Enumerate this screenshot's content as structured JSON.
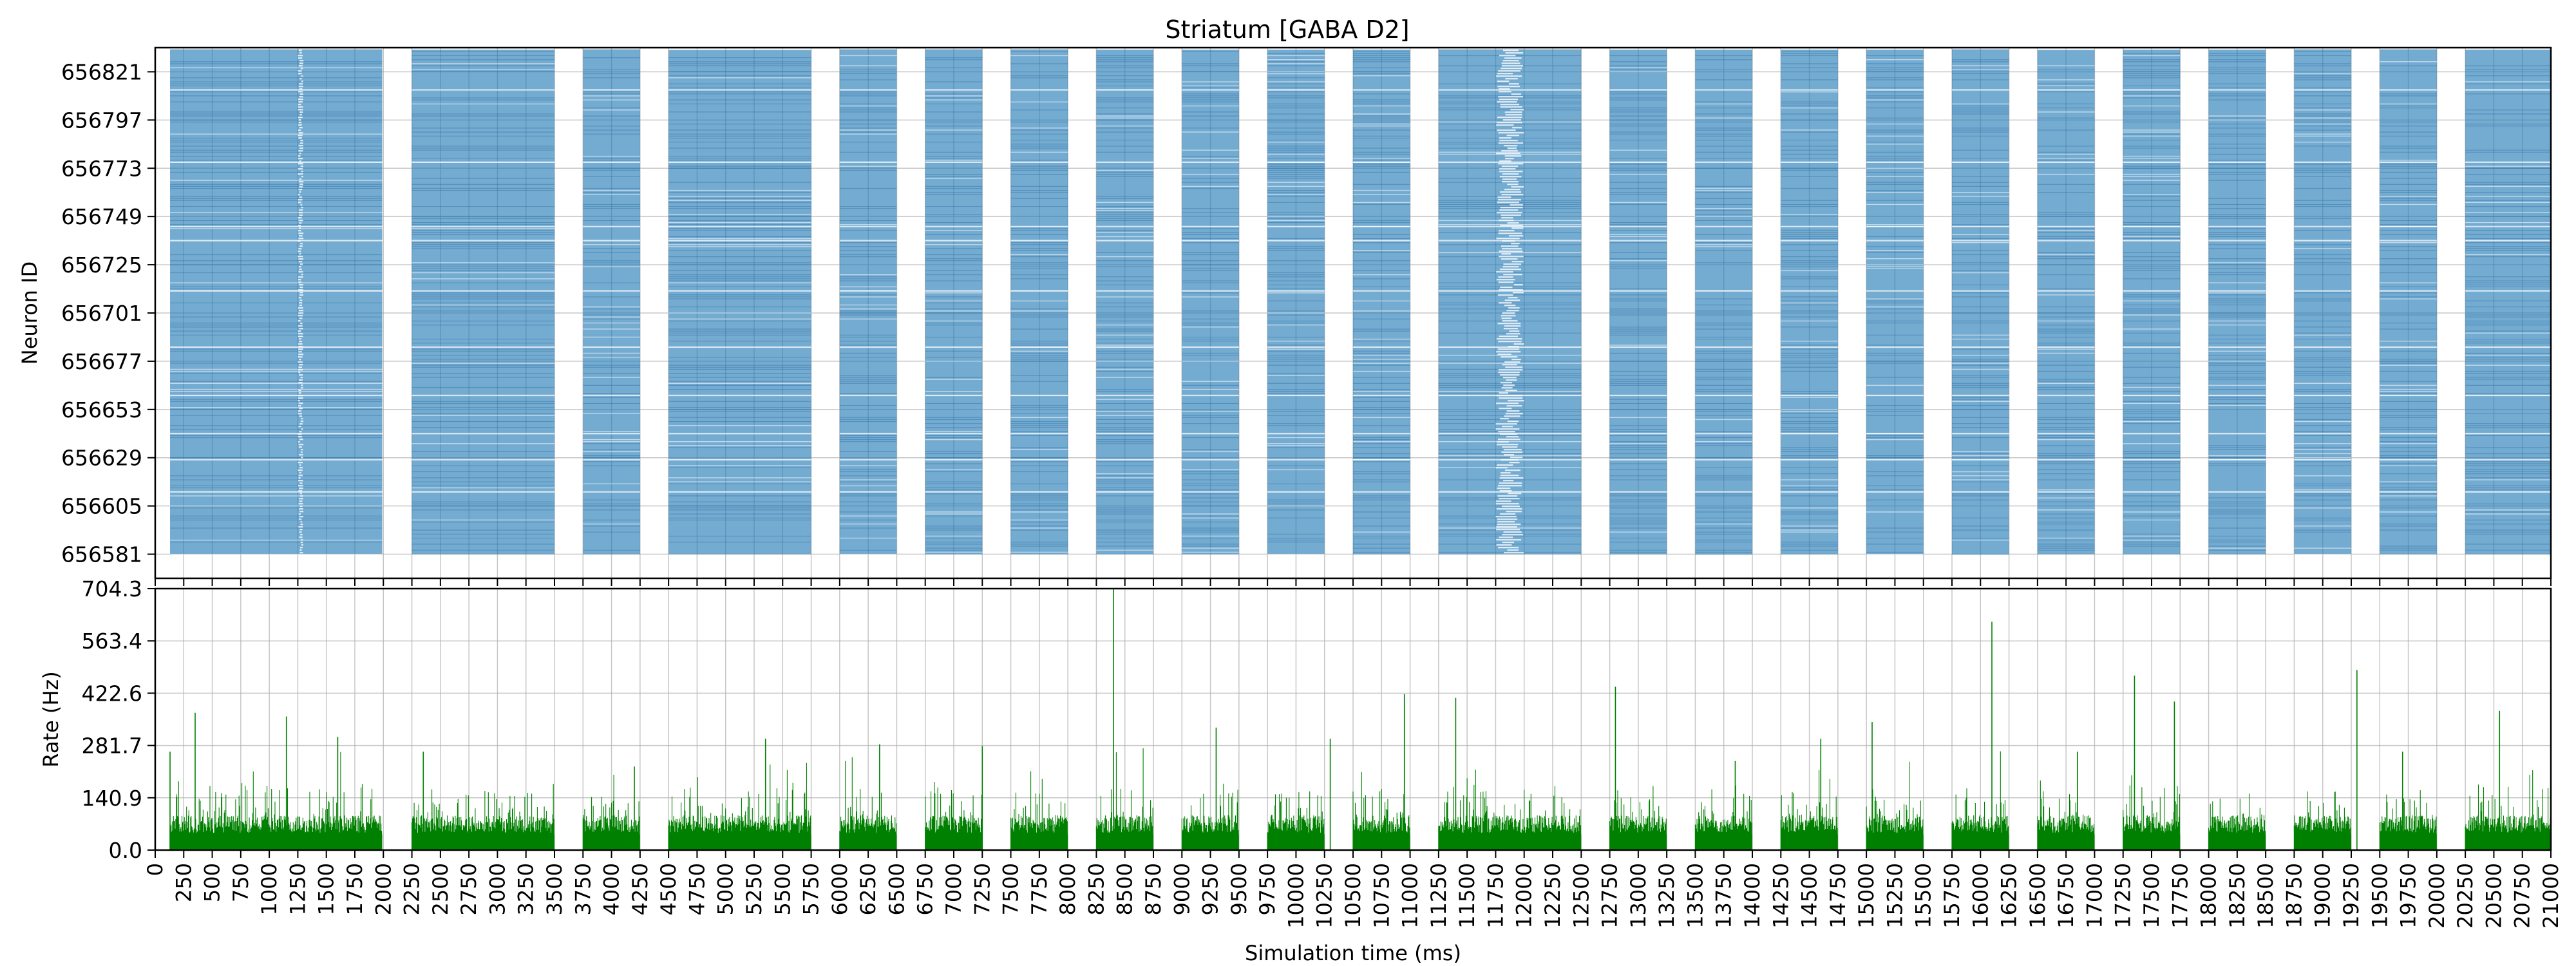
{
  "chart_data": [
    {
      "type": "scatter",
      "title": "Striatum [GABA D2]",
      "ylabel": "Neuron ID",
      "xlabel": "",
      "xlim": [
        0,
        21000
      ],
      "ylim": [
        656569,
        656833
      ],
      "yticks": [
        656581,
        656605,
        656629,
        656653,
        656677,
        656701,
        656725,
        656749,
        656773,
        656797,
        656821
      ],
      "ytick_labels": [
        "656581",
        "656605",
        "656629",
        "656653",
        "656677",
        "656701",
        "656725",
        "656749",
        "656773",
        "656797",
        "656821"
      ],
      "grid": true,
      "point_color": "#1f77b4",
      "neuron_id_range": [
        656581,
        656832
      ],
      "active_intervals_ms": [
        [
          130,
          1990
        ],
        [
          2250,
          3500
        ],
        [
          3750,
          4250
        ],
        [
          4500,
          5750
        ],
        [
          6000,
          6500
        ],
        [
          6750,
          7250
        ],
        [
          7500,
          8000
        ],
        [
          8250,
          8750
        ],
        [
          9000,
          9500
        ],
        [
          9750,
          10250
        ],
        [
          10500,
          11000
        ],
        [
          11250,
          12500
        ],
        [
          12750,
          13250
        ],
        [
          13500,
          14000
        ],
        [
          14250,
          14750
        ],
        [
          15000,
          15500
        ],
        [
          15750,
          16250
        ],
        [
          16500,
          17000
        ],
        [
          17250,
          17750
        ],
        [
          18000,
          18500
        ],
        [
          18750,
          19250
        ],
        [
          19500,
          20000
        ],
        [
          20250,
          21000
        ]
      ],
      "sparse_time_bands_ms": [
        [
          1250,
          1300
        ],
        [
          11750,
          12000
        ]
      ],
      "sparse_neuron_rows": [
        656612,
        656628,
        656641,
        656660,
        656684,
        656712,
        656737,
        656744,
        656776,
        656812
      ]
    },
    {
      "type": "bar",
      "title": "",
      "ylabel": "Rate (Hz)",
      "xlabel": "Simulation time (ms)",
      "xlim": [
        0,
        21000
      ],
      "ylim": [
        0,
        704.3
      ],
      "yticks": [
        0.0,
        140.9,
        281.7,
        422.6,
        563.4,
        704.3
      ],
      "ytick_labels": [
        "0.0",
        "140.9",
        "281.7",
        "422.6",
        "563.4",
        "704.3"
      ],
      "xticks": [
        0,
        250,
        500,
        750,
        1000,
        1250,
        1500,
        1750,
        2000,
        2250,
        2500,
        2750,
        3000,
        3250,
        3500,
        3750,
        4000,
        4250,
        4500,
        4750,
        5000,
        5250,
        5500,
        5750,
        6000,
        6250,
        6500,
        6750,
        7000,
        7250,
        7500,
        7750,
        8000,
        8250,
        8500,
        8750,
        9000,
        9250,
        9500,
        9750,
        10000,
        10250,
        10500,
        10750,
        11000,
        11250,
        11500,
        11750,
        12000,
        12250,
        12500,
        12750,
        13000,
        13250,
        13500,
        13750,
        14000,
        14250,
        14500,
        14750,
        15000,
        15250,
        15500,
        15750,
        16000,
        16250,
        16500,
        16750,
        17000,
        17250,
        17500,
        17750,
        18000,
        18250,
        18500,
        18750,
        19000,
        19250,
        19500,
        19750,
        20000,
        20250,
        20500,
        20750,
        21000
      ],
      "xtick_labels": [
        "0",
        "250",
        "500",
        "750",
        "1000",
        "1250",
        "1500",
        "1750",
        "2000",
        "2250",
        "2500",
        "2750",
        "3000",
        "3250",
        "3500",
        "3750",
        "4000",
        "4250",
        "4500",
        "4750",
        "5000",
        "5250",
        "5500",
        "5750",
        "6000",
        "6250",
        "6500",
        "6750",
        "7000",
        "7250",
        "7500",
        "7750",
        "8000",
        "8250",
        "8500",
        "8750",
        "9000",
        "9250",
        "9500",
        "9750",
        "10000",
        "10250",
        "10500",
        "10750",
        "11000",
        "11250",
        "11500",
        "11750",
        "12000",
        "12250",
        "12500",
        "12750",
        "13000",
        "13250",
        "13500",
        "13750",
        "14000",
        "14250",
        "14500",
        "14750",
        "15000",
        "15250",
        "15500",
        "15750",
        "16000",
        "16250",
        "16500",
        "16750",
        "17000",
        "17250",
        "17500",
        "17750",
        "18000",
        "18250",
        "18500",
        "18750",
        "19000",
        "19250",
        "19500",
        "19750",
        "20000",
        "20250",
        "20500",
        "20750",
        "21000"
      ],
      "grid": true,
      "bar_color": "#008000",
      "typical_rate_hz": 85,
      "notable_peaks": [
        {
          "x": 130,
          "y": 265
        },
        {
          "x": 350,
          "y": 370
        },
        {
          "x": 1150,
          "y": 360
        },
        {
          "x": 1600,
          "y": 305
        },
        {
          "x": 2350,
          "y": 265
        },
        {
          "x": 4200,
          "y": 225
        },
        {
          "x": 5350,
          "y": 300
        },
        {
          "x": 6350,
          "y": 285
        },
        {
          "x": 7250,
          "y": 280
        },
        {
          "x": 8400,
          "y": 704.3
        },
        {
          "x": 9300,
          "y": 330
        },
        {
          "x": 10300,
          "y": 300
        },
        {
          "x": 10950,
          "y": 420
        },
        {
          "x": 11400,
          "y": 410
        },
        {
          "x": 12800,
          "y": 440
        },
        {
          "x": 13850,
          "y": 240
        },
        {
          "x": 14600,
          "y": 300
        },
        {
          "x": 15050,
          "y": 345
        },
        {
          "x": 16100,
          "y": 615
        },
        {
          "x": 16850,
          "y": 265
        },
        {
          "x": 17350,
          "y": 470
        },
        {
          "x": 17700,
          "y": 400
        },
        {
          "x": 19300,
          "y": 485
        },
        {
          "x": 19700,
          "y": 265
        },
        {
          "x": 20550,
          "y": 375
        }
      ]
    }
  ]
}
